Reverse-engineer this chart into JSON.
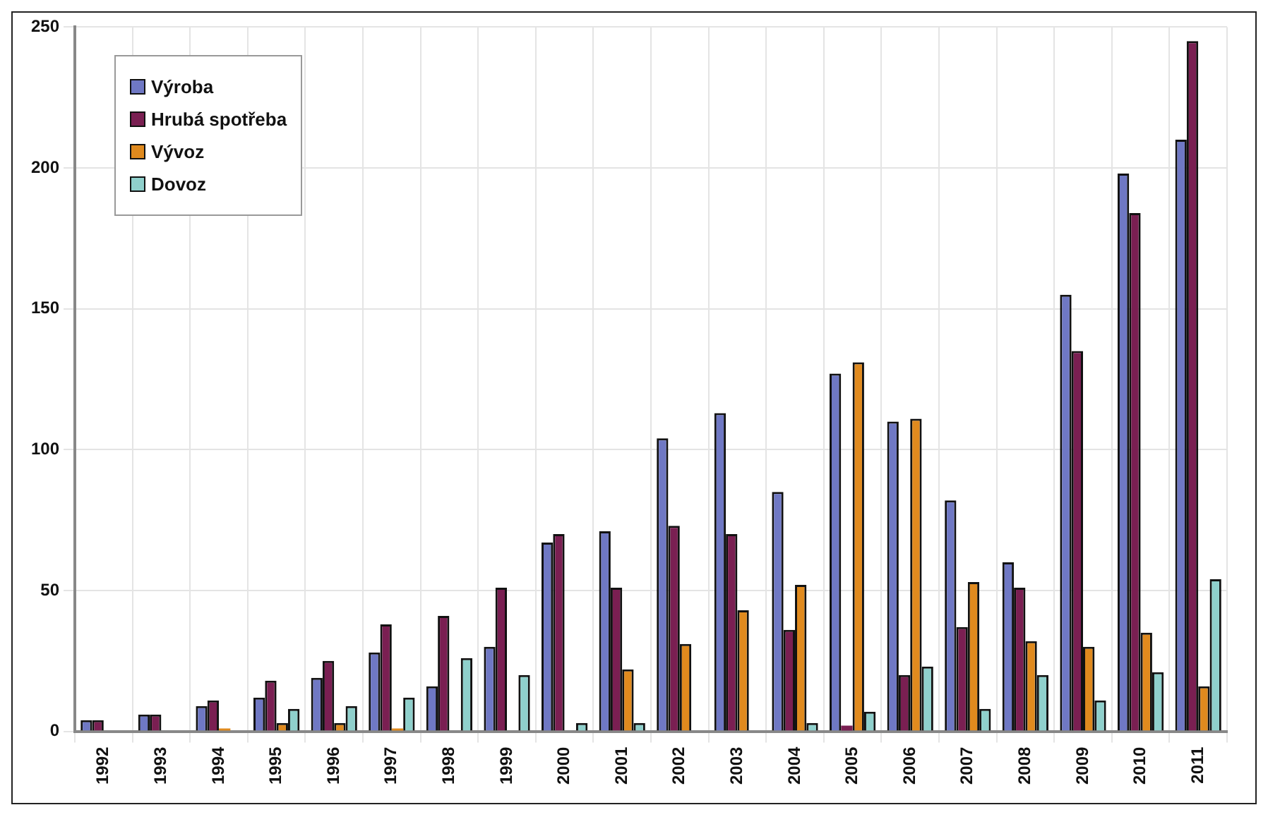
{
  "chart_data": {
    "type": "bar",
    "categories": [
      "1992",
      "1993",
      "1994",
      "1995",
      "1996",
      "1997",
      "1998",
      "1999",
      "2000",
      "2001",
      "2002",
      "2003",
      "2004",
      "2005",
      "2006",
      "2007",
      "2008",
      "2009",
      "2010",
      "2011"
    ],
    "series": [
      {
        "name": "Výroba",
        "color": "#6f78c4",
        "values": [
          4,
          6,
          9,
          12,
          19,
          28,
          16,
          30,
          67,
          71,
          104,
          113,
          85,
          127,
          110,
          82,
          60,
          155,
          198,
          210
        ]
      },
      {
        "name": "Hrubá spotřeba",
        "color": "#7a1f52",
        "values": [
          4,
          6,
          11,
          18,
          25,
          38,
          41,
          51,
          70,
          51,
          73,
          70,
          36,
          2,
          20,
          37,
          51,
          135,
          184,
          245
        ]
      },
      {
        "name": "Vývoz",
        "color": "#e08a1e",
        "values": [
          0,
          0,
          1,
          3,
          3,
          1,
          0,
          0,
          0,
          22,
          31,
          43,
          52,
          131,
          111,
          53,
          32,
          30,
          35,
          16
        ]
      },
      {
        "name": "Dovoz",
        "color": "#8fd0cc",
        "values": [
          0,
          0,
          0,
          8,
          9,
          12,
          26,
          20,
          3,
          3,
          0,
          0,
          3,
          7,
          23,
          8,
          20,
          11,
          21,
          54
        ]
      }
    ],
    "ylim": [
      0,
      250
    ],
    "yticks": [
      0,
      50,
      100,
      150,
      200,
      250
    ],
    "grid": true,
    "legend": "top left"
  }
}
